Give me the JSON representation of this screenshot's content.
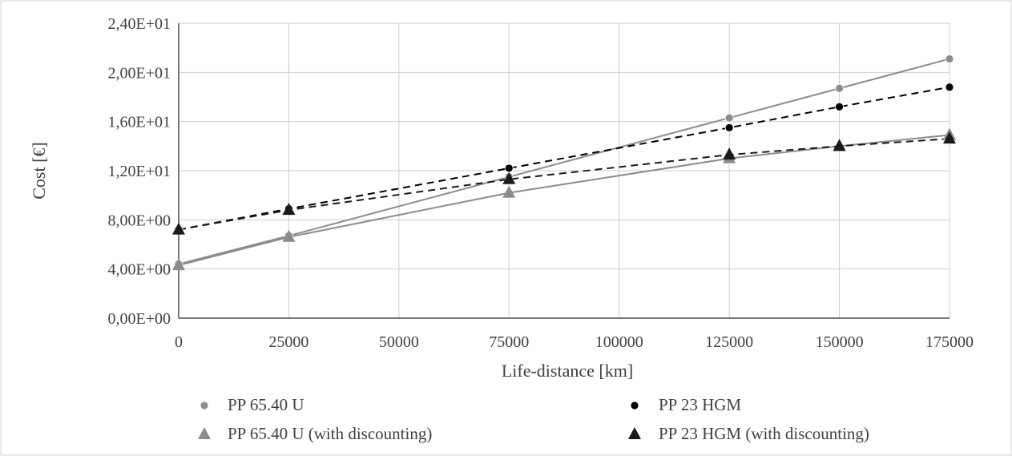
{
  "chart_data": {
    "type": "line",
    "title": "",
    "xlabel": "Life-distance [km]",
    "ylabel": "Cost [€]",
    "x": [
      0,
      25000,
      75000,
      125000,
      150000,
      175000
    ],
    "xticks": [
      0,
      25000,
      50000,
      75000,
      100000,
      125000,
      150000,
      175000
    ],
    "xtick_labels": [
      "0",
      "25000",
      "50000",
      "75000",
      "100000",
      "125000",
      "150000",
      "175000"
    ],
    "xlim": [
      0,
      175000
    ],
    "yticks": [
      0,
      4,
      8,
      12,
      16,
      20,
      24
    ],
    "ytick_labels": [
      "0,00E+00",
      "4,00E+00",
      "8,00E+00",
      "1,20E+01",
      "1,60E+01",
      "2,00E+01",
      "2,40E+01"
    ],
    "ylim": [
      0,
      24
    ],
    "grid": true,
    "legend_position": "bottom",
    "series": [
      {
        "name": "PP 65.40 U",
        "values": [
          4.4,
          6.7,
          11.5,
          16.3,
          18.7,
          21.1
        ],
        "color": "#8c8c8c",
        "marker": "circle",
        "line": "solid"
      },
      {
        "name": "PP 23 HGM",
        "values": [
          7.2,
          8.9,
          12.2,
          15.5,
          17.2,
          18.8
        ],
        "color": "#000000",
        "marker": "circle",
        "line": "dashed"
      },
      {
        "name": "PP 65.40 U (with discounting)",
        "values": [
          4.3,
          6.6,
          10.2,
          13.0,
          14.0,
          14.9
        ],
        "color": "#8c8c8c",
        "marker": "triangle",
        "line": "solid"
      },
      {
        "name": "PP 23 HGM (with discounting)",
        "values": [
          7.2,
          8.8,
          11.3,
          13.3,
          14.0,
          14.6
        ],
        "color": "#1a1a1a",
        "marker": "triangle",
        "line": "dashed"
      }
    ],
    "legend": [
      {
        "label": "PP 65.40 U",
        "series": 0
      },
      {
        "label": "PP 23 HGM",
        "series": 1
      },
      {
        "label": "PP 65.40 U (with discounting)",
        "series": 2
      },
      {
        "label": "PP 23 HGM (with discounting)",
        "series": 3
      }
    ]
  }
}
